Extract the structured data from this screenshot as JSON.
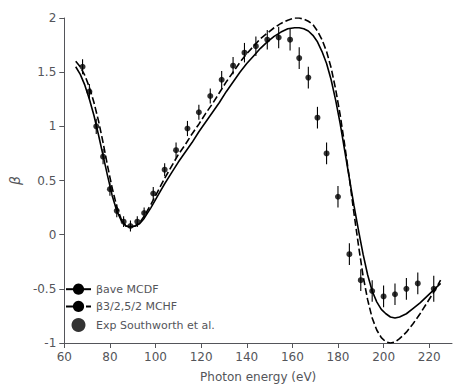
{
  "chart_data": {
    "type": "line",
    "xlabel": "Photon energy (eV)",
    "ylabel": "β",
    "xlim": [
      60,
      230
    ],
    "ylim": [
      -1,
      2
    ],
    "xticks": [
      60,
      80,
      100,
      120,
      140,
      160,
      180,
      200,
      220
    ],
    "yticks": [
      -1,
      -0.5,
      0,
      0.5,
      1,
      1.5,
      2
    ],
    "grid": false,
    "legend": "lower left",
    "series": [
      {
        "name": "βave MCDF",
        "type": "line",
        "line_style": "solid",
        "color": "#000000",
        "x": [
          65,
          67,
          69,
          71,
          73,
          75,
          77,
          79,
          81,
          83,
          85,
          87,
          89,
          91,
          93,
          95,
          98,
          101,
          104,
          107,
          110,
          113,
          116,
          119,
          122,
          125,
          128,
          131,
          134,
          137,
          140,
          143,
          146,
          149,
          152,
          155,
          158,
          161,
          163,
          165,
          167,
          169,
          171,
          173,
          175,
          177,
          179,
          181,
          183,
          185,
          187,
          189,
          191,
          193,
          195,
          197,
          199,
          201,
          203,
          205,
          207,
          210,
          213,
          216,
          219,
          222,
          225
        ],
        "values": [
          1.55,
          1.48,
          1.38,
          1.25,
          1.1,
          0.92,
          0.73,
          0.54,
          0.36,
          0.22,
          0.13,
          0.08,
          0.07,
          0.08,
          0.1,
          0.15,
          0.25,
          0.36,
          0.47,
          0.57,
          0.67,
          0.76,
          0.85,
          0.95,
          1.04,
          1.13,
          1.22,
          1.32,
          1.41,
          1.5,
          1.58,
          1.65,
          1.72,
          1.78,
          1.83,
          1.87,
          1.9,
          1.91,
          1.91,
          1.9,
          1.88,
          1.84,
          1.78,
          1.69,
          1.58,
          1.43,
          1.24,
          1.02,
          0.77,
          0.52,
          0.27,
          0.04,
          -0.18,
          -0.37,
          -0.52,
          -0.62,
          -0.69,
          -0.73,
          -0.76,
          -0.77,
          -0.76,
          -0.73,
          -0.68,
          -0.63,
          -0.57,
          -0.51,
          -0.45
        ]
      },
      {
        "name": "β3/2,5/2 MCHF",
        "type": "line",
        "line_style": "dashed",
        "color": "#000000",
        "x": [
          65,
          67,
          69,
          71,
          73,
          75,
          77,
          79,
          81,
          83,
          85,
          87,
          89,
          91,
          93,
          95,
          98,
          101,
          104,
          107,
          110,
          113,
          116,
          119,
          122,
          125,
          128,
          131,
          134,
          137,
          140,
          143,
          146,
          149,
          152,
          155,
          158,
          161,
          163,
          165,
          167,
          169,
          171,
          173,
          175,
          177,
          179,
          181,
          183,
          185,
          187,
          189,
          191,
          193,
          195,
          197,
          199,
          201,
          203,
          205,
          207,
          210,
          213,
          216,
          219,
          222,
          225
        ],
        "values": [
          1.6,
          1.55,
          1.47,
          1.36,
          1.22,
          1.05,
          0.85,
          0.63,
          0.43,
          0.26,
          0.14,
          0.08,
          0.07,
          0.08,
          0.11,
          0.17,
          0.28,
          0.4,
          0.52,
          0.63,
          0.74,
          0.83,
          0.93,
          1.02,
          1.12,
          1.21,
          1.31,
          1.41,
          1.5,
          1.59,
          1.67,
          1.74,
          1.81,
          1.86,
          1.91,
          1.95,
          1.98,
          2.0,
          2.0,
          1.99,
          1.97,
          1.94,
          1.88,
          1.8,
          1.69,
          1.54,
          1.34,
          1.1,
          0.82,
          0.52,
          0.2,
          -0.1,
          -0.38,
          -0.6,
          -0.77,
          -0.88,
          -0.95,
          -0.99,
          -1.0,
          -0.99,
          -0.96,
          -0.9,
          -0.82,
          -0.73,
          -0.63,
          -0.53,
          -0.42
        ]
      },
      {
        "name": "Exp Southworth et al.",
        "type": "scatter",
        "marker": "circle",
        "color": "#000000",
        "x": [
          68,
          71,
          74,
          77,
          80,
          83,
          86,
          89,
          92,
          95,
          99,
          104,
          109,
          114,
          119,
          124,
          129,
          134,
          139,
          144,
          149,
          154,
          159,
          163,
          167,
          171,
          175,
          180,
          185,
          190,
          195,
          200,
          205,
          210,
          215,
          222
        ],
        "values": [
          1.55,
          1.32,
          1.0,
          0.72,
          0.42,
          0.22,
          0.12,
          0.08,
          0.12,
          0.2,
          0.38,
          0.6,
          0.78,
          0.98,
          1.13,
          1.28,
          1.43,
          1.56,
          1.68,
          1.74,
          1.8,
          1.82,
          1.8,
          1.63,
          1.45,
          1.08,
          0.75,
          0.35,
          -0.18,
          -0.42,
          -0.52,
          -0.57,
          -0.55,
          -0.5,
          -0.45,
          -0.5
        ],
        "errors": [
          0.07,
          0.07,
          0.07,
          0.07,
          0.06,
          0.06,
          0.05,
          0.05,
          0.05,
          0.05,
          0.06,
          0.06,
          0.07,
          0.07,
          0.07,
          0.07,
          0.08,
          0.08,
          0.09,
          0.09,
          0.09,
          0.1,
          0.1,
          0.1,
          0.1,
          0.1,
          0.1,
          0.1,
          0.1,
          0.1,
          0.1,
          0.1,
          0.1,
          0.1,
          0.1,
          0.12
        ]
      }
    ]
  }
}
